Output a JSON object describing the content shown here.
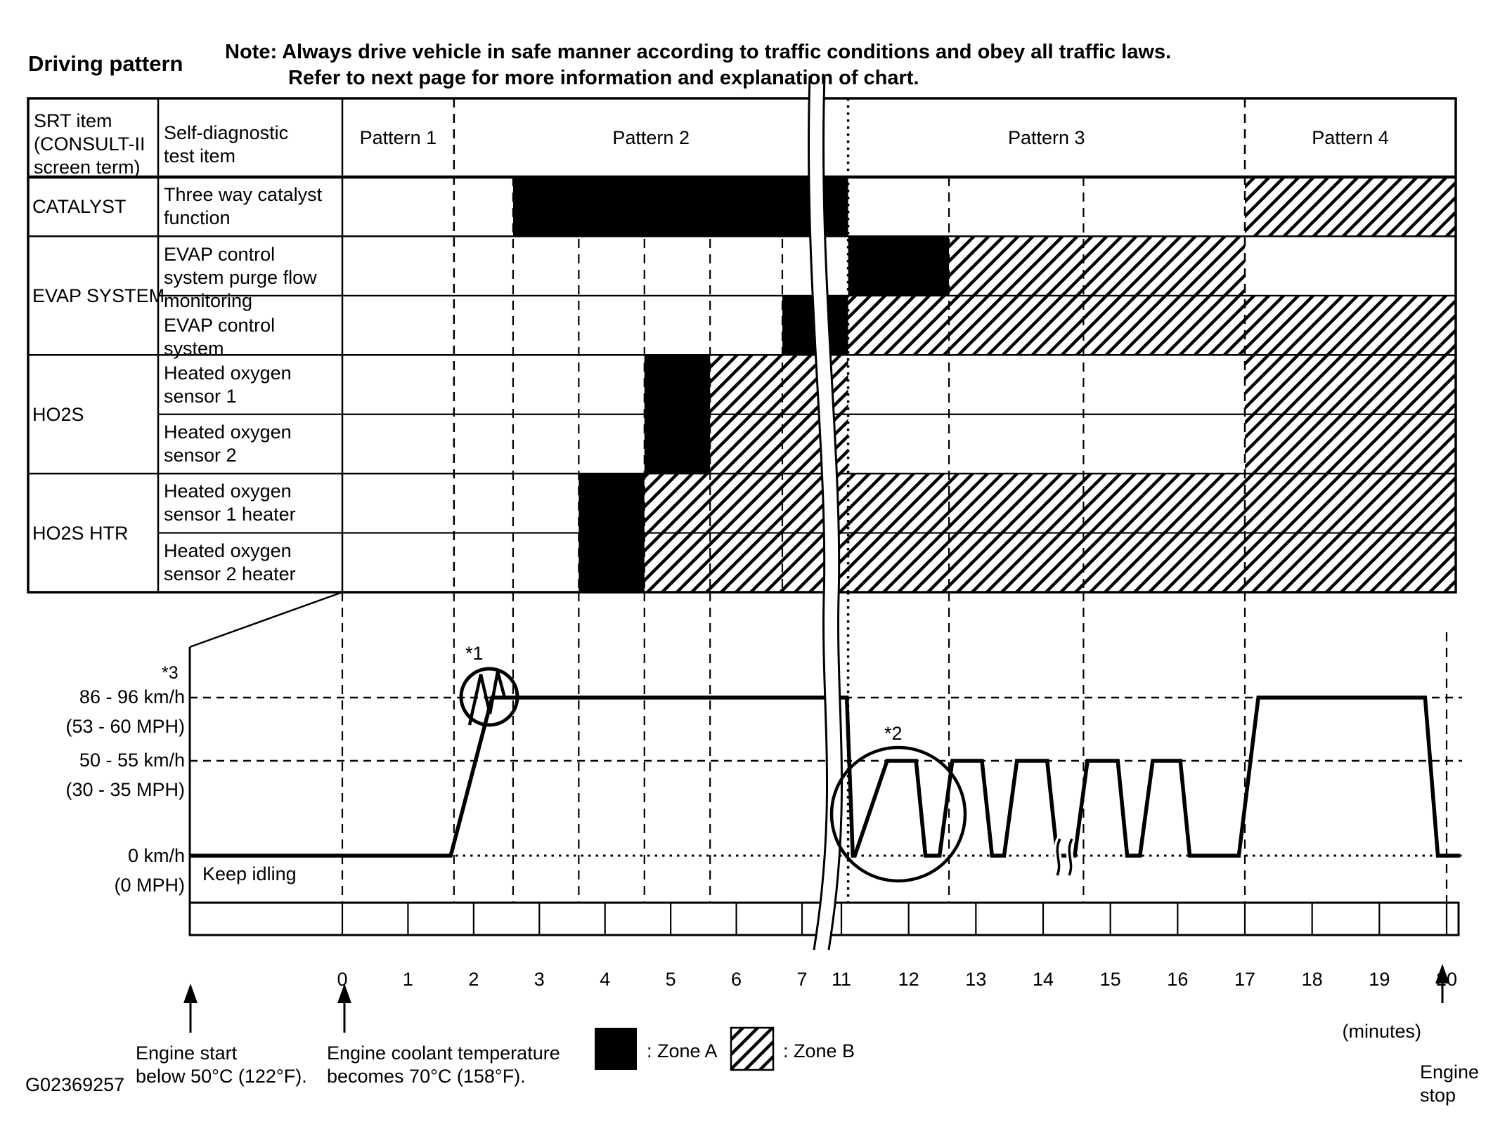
{
  "header": {
    "title": "Driving pattern",
    "note_line1": "Note: Always drive vehicle in safe manner according to traffic conditions and obey all traffic laws.",
    "note_line2": "Refer to next page for more information and explanation of chart."
  },
  "table": {
    "srt_header_lines": [
      "SRT item",
      "(CONSULT-II",
      "screen term)"
    ],
    "test_header_lines": [
      "Self-diagnostic",
      "test item"
    ],
    "pattern_labels": [
      "Pattern 1",
      "Pattern 2",
      "Pattern 3",
      "Pattern 4"
    ],
    "groups": [
      {
        "srt": "CATALYST",
        "rows": 1
      },
      {
        "srt": "EVAP SYSTEM",
        "rows": 2
      },
      {
        "srt": "HO2S",
        "rows": 2
      },
      {
        "srt": "HO2S HTR",
        "rows": 2
      }
    ],
    "rows": [
      {
        "test_item": "Three way catalyst function",
        "zones": [
          {
            "zone": "A",
            "from": 2.6,
            "to": 11.1
          },
          {
            "zone": "B",
            "from": 17,
            "to": "end"
          }
        ]
      },
      {
        "test_item": "EVAP control system purge flow monitoring",
        "zones": [
          {
            "zone": "A",
            "from": 11.1,
            "to": 12.6
          },
          {
            "zone": "B",
            "from": 12.6,
            "to": 17
          }
        ]
      },
      {
        "test_item": "EVAP control system",
        "zones": [
          {
            "zone": "A",
            "from": 6.7,
            "to": 11.1
          },
          {
            "zone": "B",
            "from": 11.1,
            "to": "end"
          }
        ]
      },
      {
        "test_item": "Heated oxygen sensor 1",
        "zones": [
          {
            "zone": "A",
            "from": 4.6,
            "to": 5.6
          },
          {
            "zone": "B",
            "from": 5.6,
            "to": 11.1
          },
          {
            "zone": "B",
            "from": 17,
            "to": "end"
          }
        ]
      },
      {
        "test_item": "Heated oxygen sensor 2",
        "zones": [
          {
            "zone": "A",
            "from": 4.6,
            "to": 5.6
          },
          {
            "zone": "B",
            "from": 5.6,
            "to": 11.1
          },
          {
            "zone": "B",
            "from": 17,
            "to": "end"
          }
        ]
      },
      {
        "test_item": "Heated oxygen sensor 1 heater",
        "zones": [
          {
            "zone": "A",
            "from": 3.6,
            "to": 4.6
          },
          {
            "zone": "B",
            "from": 4.6,
            "to": "end"
          }
        ]
      },
      {
        "test_item": "Heated oxygen sensor 2 heater",
        "zones": [
          {
            "zone": "A",
            "from": 3.6,
            "to": 4.6
          },
          {
            "zone": "B",
            "from": 4.6,
            "to": "end"
          }
        ]
      }
    ]
  },
  "chart_data": {
    "type": "timing-gantt+line",
    "x_axis": {
      "unit_label": "(minutes)",
      "ticks_before_break": [
        0,
        1,
        2,
        3,
        4,
        5,
        6,
        7
      ],
      "ticks_after_break": [
        11,
        12,
        13,
        14,
        15,
        16,
        17,
        18,
        19,
        20
      ],
      "break_between": [
        7,
        11
      ]
    },
    "pattern_boundaries_minutes": [
      1.7,
      11.1,
      17
    ],
    "event_lines_minutes_table": [
      2.6,
      3.6,
      4.6,
      5.6,
      6.7,
      12.6,
      14.6
    ],
    "event_lines_minutes_graph": [
      0,
      1.7,
      2.6,
      3.6,
      4.6,
      5.6,
      12.6,
      14.6,
      17
    ],
    "speed_levels": {
      "high": {
        "label": "86 - 96 km/h",
        "sub": "(53 - 60 MPH)",
        "note": "*3"
      },
      "mid": {
        "label": "50 - 55 km/h",
        "sub": "(30 - 35 MPH)"
      },
      "zero": {
        "label": "0 km/h",
        "sub": "(0 MPH)"
      }
    },
    "speed_profile": [
      [
        -2.32,
        "zero"
      ],
      [
        1.65,
        "zero"
      ],
      [
        2.28,
        "high"
      ],
      [
        11.08,
        "high"
      ],
      [
        11.17,
        "zero"
      ],
      [
        11.2,
        "zero"
      ],
      [
        11.68,
        "mid"
      ],
      [
        12.11,
        "mid"
      ],
      [
        12.25,
        "zero"
      ],
      [
        12.46,
        "zero"
      ],
      [
        12.65,
        "mid"
      ],
      [
        13.09,
        "mid"
      ],
      [
        13.24,
        "zero"
      ],
      [
        13.42,
        "zero"
      ],
      [
        13.61,
        "mid"
      ],
      [
        14.06,
        "mid"
      ],
      [
        14.21,
        "zero"
      ],
      [
        14.47,
        "zero"
      ],
      [
        14.66,
        "mid"
      ],
      [
        15.11,
        "mid"
      ],
      [
        15.25,
        "zero"
      ],
      [
        15.44,
        "zero"
      ],
      [
        15.63,
        "mid"
      ],
      [
        16.04,
        "mid"
      ],
      [
        16.18,
        "zero"
      ],
      [
        16.91,
        "zero"
      ],
      [
        17.2,
        "high"
      ],
      [
        19.68,
        "high"
      ],
      [
        19.87,
        "zero"
      ],
      [
        20.2,
        "zero"
      ]
    ],
    "keep_idling": "Keep idling",
    "callout_1": "*1",
    "callout_2": "*2"
  },
  "legend": {
    "zone_a_label": ": Zone A",
    "zone_b_label": ": Zone B"
  },
  "annotations": {
    "engine_start": [
      "Engine start",
      "below 50°C (122°F)."
    ],
    "coolant": [
      "Engine coolant temperature",
      "becomes 70°C (158°F)."
    ],
    "engine_stop": [
      "Engine",
      "stop"
    ],
    "minutes_label": "(minutes)"
  },
  "figure_code": "G02369257",
  "colors": {
    "ink": "#000000",
    "paper": "#ffffff"
  }
}
